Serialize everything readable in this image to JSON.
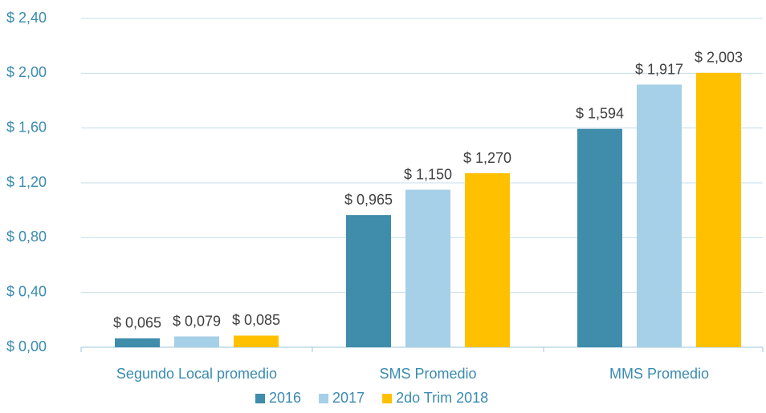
{
  "chart_data": {
    "type": "bar",
    "categories": [
      "Segundo Local promedio",
      "SMS Promedio",
      "MMS Promedio"
    ],
    "series": [
      {
        "name": "2016",
        "color": "#3f8cab",
        "values": [
          0.065,
          0.965,
          1.594
        ],
        "value_labels": [
          "$ 0,065",
          "$ 0,965",
          "$ 1,594"
        ]
      },
      {
        "name": "2017",
        "color": "#a6cfe8",
        "values": [
          0.079,
          1.15,
          1.917
        ],
        "value_labels": [
          "$ 0,079",
          "$ 1,150",
          "$ 1,917"
        ]
      },
      {
        "name": "2do Trim 2018",
        "color": "#ffc000",
        "values": [
          0.085,
          1.27,
          2.003
        ],
        "value_labels": [
          "$ 0,085",
          "$ 1,270",
          "$ 2,003"
        ]
      }
    ],
    "ylim": [
      0,
      2.4
    ],
    "yticks": [
      {
        "value": 0,
        "label": "$ 0,00"
      },
      {
        "value": 0.4,
        "label": "$ 0,40"
      },
      {
        "value": 0.8,
        "label": "$ 0,80"
      },
      {
        "value": 1.2,
        "label": "$ 1,20"
      },
      {
        "value": 1.6,
        "label": "$ 1,60"
      },
      {
        "value": 2.0,
        "label": "$ 2,00"
      },
      {
        "value": 2.4,
        "label": "$ 2,40"
      }
    ],
    "grid": true,
    "legend": "bottom"
  }
}
